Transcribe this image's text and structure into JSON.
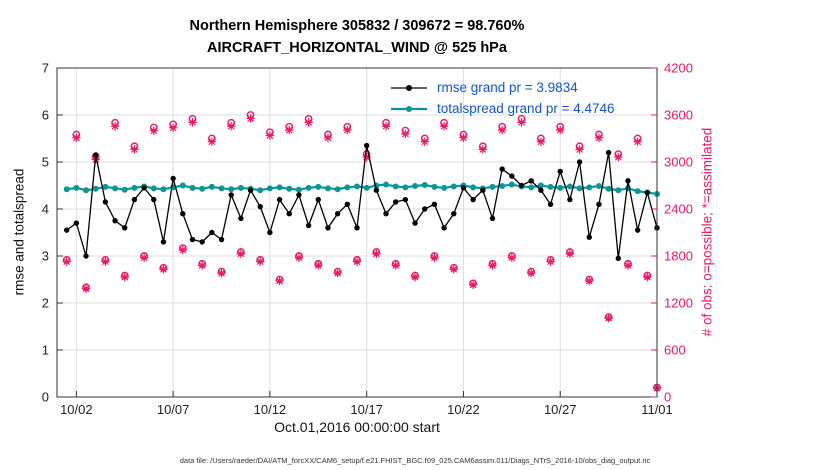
{
  "footer": {
    "text": "data file: /Users/raeder/DAI/ATM_forcXX/CAM6_setup/f.e21.FHIST_BGC.f09_025.CAM6assim.011/Diags_NTrS_2016-10/obs_diag_output.nc"
  },
  "chart_data": {
    "type": "line",
    "title_line1": "Northern Hemisphere 305832 / 309672 = 98.760%",
    "title_line2": "AIRCRAFT_HORIZONTAL_WIND @ 525 hPa",
    "xlabel": "Oct.01,2016 00:00:00 start",
    "ylabel_left": "rmse and totalspread",
    "ylabel_right": "# of obs: o=possible; *=assimilated",
    "xlim": [
      1,
      32
    ],
    "ylim_left": [
      0,
      7
    ],
    "ylim_right": [
      0,
      4200
    ],
    "grid": true,
    "x_description": "day of month, Oct 1 = 1 through Nov 1 = 32, 12-hourly points",
    "xticks": {
      "values": [
        2,
        7,
        12,
        17,
        22,
        27,
        32
      ],
      "labels": [
        "10/02",
        "10/07",
        "10/12",
        "10/17",
        "10/22",
        "10/27",
        "11/01"
      ]
    },
    "yticks_left": {
      "values": [
        0,
        1,
        2,
        3,
        4,
        5,
        6,
        7
      ],
      "labels": [
        "0",
        "1",
        "2",
        "3",
        "4",
        "5",
        "6",
        "7"
      ]
    },
    "yticks_right": {
      "values": [
        0,
        600,
        1200,
        1800,
        2400,
        3000,
        3600,
        4200
      ],
      "labels": [
        "0",
        "600",
        "1200",
        "1800",
        "2400",
        "3000",
        "3600",
        "4200"
      ]
    },
    "colors": {
      "rmse": "#000000",
      "totalspread": "#0a9696",
      "obs": "#e81a66",
      "legend_text": "#1155cc",
      "grid": "#dcdcdc",
      "axis": "#333333"
    },
    "legend": {
      "position": "inside-top-center",
      "entries": [
        {
          "label": "rmse grand pr = 3.9834",
          "color": "#000000",
          "line_width": 1.3
        },
        {
          "label": "totalspread grand pr = 4.4746",
          "color": "#0a9696",
          "line_width": 2.2
        }
      ]
    },
    "x": [
      1.5,
      2,
      2.5,
      3,
      3.5,
      4,
      4.5,
      5,
      5.5,
      6,
      6.5,
      7,
      7.5,
      8,
      8.5,
      9,
      9.5,
      10,
      10.5,
      11,
      11.5,
      12,
      12.5,
      13,
      13.5,
      14,
      14.5,
      15,
      15.5,
      16,
      16.5,
      17,
      17.5,
      18,
      18.5,
      19,
      19.5,
      20,
      20.5,
      21,
      21.5,
      22,
      22.5,
      23,
      23.5,
      24,
      24.5,
      25,
      25.5,
      26,
      26.5,
      27,
      27.5,
      28,
      28.5,
      29,
      29.5,
      30,
      30.5,
      31,
      31.5,
      32
    ],
    "series": [
      {
        "name": "rmse",
        "color": "#000000",
        "values": [
          3.55,
          3.7,
          3.0,
          5.15,
          4.15,
          3.75,
          3.6,
          4.2,
          4.45,
          4.2,
          3.3,
          4.65,
          3.9,
          3.35,
          3.3,
          3.5,
          3.35,
          4.3,
          3.8,
          4.4,
          4.05,
          3.5,
          4.2,
          3.9,
          4.3,
          3.65,
          4.2,
          3.6,
          3.9,
          4.1,
          3.6,
          5.35,
          4.4,
          3.9,
          4.15,
          4.2,
          3.7,
          4.0,
          4.1,
          3.6,
          3.9,
          4.45,
          4.2,
          4.4,
          3.8,
          4.85,
          4.7,
          4.5,
          4.6,
          4.4,
          4.1,
          4.8,
          4.2,
          5.0,
          3.4,
          4.1,
          5.2,
          2.95,
          4.6,
          3.55,
          4.35,
          3.6
        ]
      },
      {
        "name": "totalspread",
        "color": "#0a9696",
        "values": [
          4.42,
          4.45,
          4.4,
          4.43,
          4.47,
          4.44,
          4.41,
          4.45,
          4.48,
          4.44,
          4.42,
          4.46,
          4.5,
          4.45,
          4.43,
          4.47,
          4.44,
          4.42,
          4.45,
          4.43,
          4.4,
          4.44,
          4.46,
          4.43,
          4.41,
          4.45,
          4.47,
          4.44,
          4.42,
          4.46,
          4.48,
          4.45,
          4.5,
          4.52,
          4.48,
          4.46,
          4.49,
          4.51,
          4.47,
          4.45,
          4.48,
          4.5,
          4.46,
          4.44,
          4.47,
          4.49,
          4.52,
          4.48,
          4.46,
          4.5,
          4.47,
          4.45,
          4.48,
          4.44,
          4.46,
          4.49,
          4.43,
          4.4,
          4.44,
          4.38,
          4.35,
          4.32
        ]
      }
    ],
    "obs": {
      "axis": "right",
      "color": "#e81a66",
      "possible": [
        1750,
        3350,
        1400,
        3070,
        1750,
        3500,
        1550,
        3200,
        1800,
        3440,
        1650,
        3480,
        1900,
        3550,
        1700,
        3300,
        1600,
        3500,
        1850,
        3600,
        1750,
        3380,
        1500,
        3450,
        1800,
        3550,
        1700,
        3350,
        1600,
        3450,
        1750,
        3100,
        1850,
        3500,
        1700,
        3400,
        1550,
        3300,
        1800,
        3500,
        1650,
        3350,
        1450,
        3200,
        1700,
        3450,
        1800,
        3550,
        1600,
        3300,
        1750,
        3450,
        1850,
        3200,
        1500,
        3350,
        1020,
        3100,
        1700,
        3300,
        1550,
        120
      ],
      "assimilated_fraction": 0.9876
    }
  }
}
